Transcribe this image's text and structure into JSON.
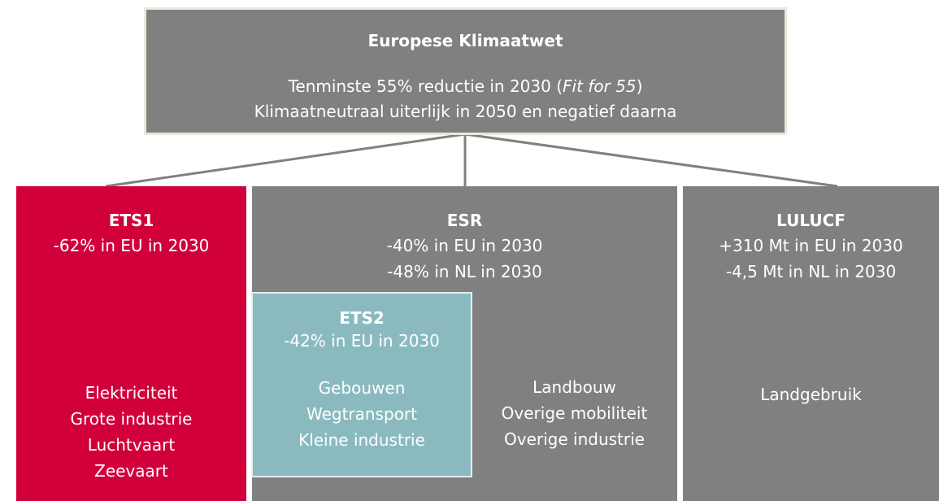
{
  "top": {
    "title": "Europese Klimaatwet",
    "line1_before": "Tenminste 55% reductie in 2030 (",
    "line1_italic": "Fit for 55",
    "line1_after": ")",
    "line2": "Klimaatneutraal uiterlijk in 2050 en negatief daarna"
  },
  "boxes": [
    {
      "title": "ETS1",
      "targets": [
        "-62% in EU in 2030"
      ],
      "sectors": [
        "Elektriciteit",
        "Grote industrie",
        "Luchtvaart",
        "Zeevaart"
      ]
    },
    {
      "title": "ESR",
      "targets": [
        "-40% in EU in 2030",
        "-48% in NL in 2030"
      ],
      "sectors": [
        "Landbouw",
        "Overige mobiliteit",
        "Overige industrie"
      ]
    },
    {
      "title": "LULUCF",
      "targets": [
        "+310 Mt in EU in 2030",
        "-4,5 Mt in NL in 2030"
      ],
      "sectors": [
        "Landgebruik"
      ]
    },
    {
      "title": "ETS2",
      "targets": [
        "-42% in EU in 2030"
      ],
      "sectors": [
        "Gebouwen",
        "Wegtransport",
        "Kleine industrie"
      ]
    }
  ]
}
